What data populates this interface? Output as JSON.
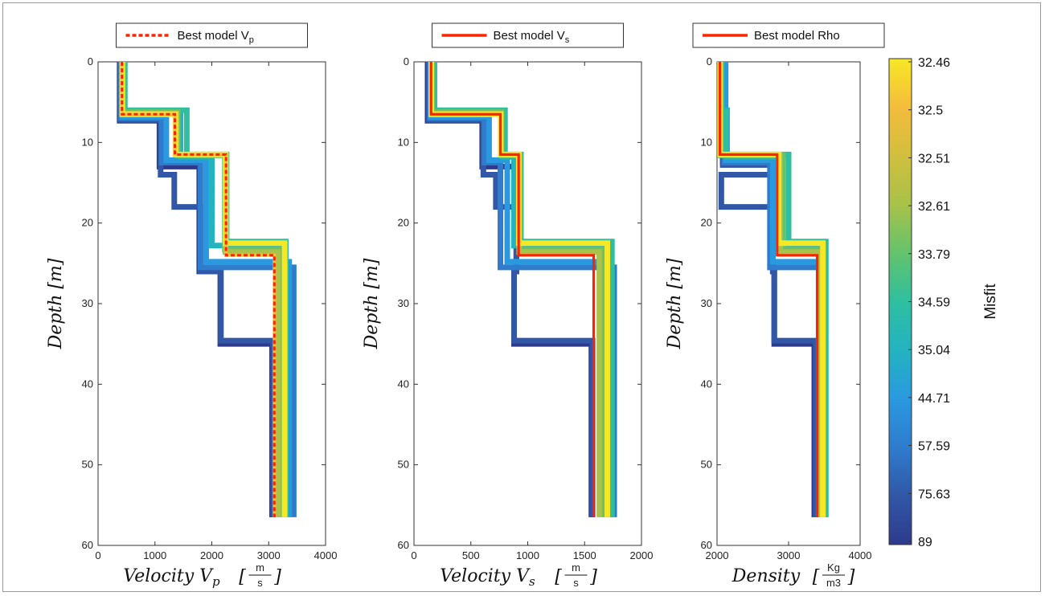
{
  "chart_data": [
    {
      "type": "line",
      "xlabel": "Velocity V_p [m/s]",
      "xlabel_main": "Velocity V",
      "xlabel_sub": "p",
      "xlabel_unit_num": "m",
      "xlabel_unit_den": "s",
      "ylabel": "Depth [m]",
      "ylabel_main": "Depth",
      "ylabel_unit": "m",
      "xlim": [
        0,
        4000
      ],
      "ylim": [
        0,
        60
      ],
      "xticks": [
        0,
        1000,
        2000,
        3000,
        4000
      ],
      "yticks": [
        0,
        10,
        20,
        30,
        40,
        50,
        60
      ],
      "y_reversed": true,
      "legend": {
        "label": "Best model V",
        "sub": "p",
        "position": "top",
        "line_style": "dashed"
      },
      "best_model": {
        "name": "Best model V_p",
        "color": "#ff2200",
        "depth_tops": [
          0,
          6.5,
          11.5,
          24
        ],
        "values": [
          420,
          1350,
          2250,
          3100
        ],
        "bottom": 56.5
      },
      "ensemble": [
        {
          "misfit": 89,
          "depth_tops": [
            0,
            7.3,
            13,
            26,
            30,
            35
          ],
          "values": [
            380,
            1080,
            1780,
            2150,
            2150,
            3060
          ],
          "bottom": 56.5
        },
        {
          "misfit": 75.63,
          "depth_tops": [
            0,
            7.2,
            14,
            18,
            26,
            29.7,
            34.6
          ],
          "values": [
            390,
            1100,
            1340,
            1800,
            2160,
            2160,
            3080
          ],
          "bottom": 56.5
        },
        {
          "misfit": 57.59,
          "depth_tops": [
            0,
            7,
            12.5,
            25.5
          ],
          "values": [
            400,
            1120,
            1800,
            3440
          ],
          "bottom": 56.5
        },
        {
          "misfit": 44.71,
          "depth_tops": [
            0,
            6.8,
            12.2,
            24.8
          ],
          "values": [
            430,
            1200,
            1900,
            3360
          ],
          "bottom": 56.5
        },
        {
          "misfit": 35.04,
          "depth_tops": [
            0,
            6.3,
            11.8,
            22.8
          ],
          "values": [
            460,
            1450,
            2000,
            3260
          ],
          "bottom": 56.5
        },
        {
          "misfit": 34.59,
          "depth_tops": [
            0,
            6,
            11.5,
            22.3
          ],
          "values": [
            470,
            1560,
            2260,
            3300
          ],
          "bottom": 56.5
        },
        {
          "misfit": 33.79,
          "depth_tops": [
            0,
            6.2,
            11.6,
            23.3
          ],
          "values": [
            440,
            1400,
            2230,
            3200
          ],
          "bottom": 56.5
        },
        {
          "misfit": 32.61,
          "depth_tops": [
            0,
            6.4,
            11.5,
            23.6
          ],
          "values": [
            430,
            1380,
            2240,
            3160
          ],
          "bottom": 56.5
        },
        {
          "misfit": 32.46,
          "depth_tops": [
            0,
            6.5,
            11.5,
            22.5
          ],
          "values": [
            425,
            1360,
            2245,
            3280
          ],
          "bottom": 56.5
        }
      ]
    },
    {
      "type": "line",
      "xlabel": "Velocity V_s [m/s]",
      "xlabel_main": "Velocity V",
      "xlabel_sub": "s",
      "xlabel_unit_num": "m",
      "xlabel_unit_den": "s",
      "ylabel": "Depth [m]",
      "ylabel_main": "Depth",
      "ylabel_unit": "m",
      "xlim": [
        0,
        2000
      ],
      "ylim": [
        0,
        60
      ],
      "xticks": [
        0,
        500,
        1000,
        1500,
        2000
      ],
      "yticks": [
        0,
        10,
        20,
        30,
        40,
        50,
        60
      ],
      "y_reversed": true,
      "legend": {
        "label": "Best model V",
        "sub": "s",
        "position": "top",
        "line_style": "solid"
      },
      "best_model": {
        "name": "Best model V_s",
        "color": "#ff2200",
        "depth_tops": [
          0,
          6.5,
          11.5,
          24
        ],
        "values": [
          150,
          760,
          920,
          1580
        ],
        "bottom": 56.5
      },
      "ensemble": [
        {
          "misfit": 89,
          "depth_tops": [
            0,
            7.3,
            13,
            26,
            30,
            35
          ],
          "values": [
            120,
            600,
            900,
            880,
            880,
            1560
          ],
          "bottom": 56.5
        },
        {
          "misfit": 75.63,
          "depth_tops": [
            0,
            7.2,
            14,
            18,
            26,
            29.7,
            34.6
          ],
          "values": [
            130,
            610,
            720,
            900,
            880,
            880,
            1570
          ],
          "bottom": 56.5
        },
        {
          "misfit": 57.59,
          "depth_tops": [
            0,
            7,
            12.5,
            25.5
          ],
          "values": [
            140,
            620,
            760,
            1760
          ],
          "bottom": 56.5
        },
        {
          "misfit": 44.71,
          "depth_tops": [
            0,
            6.8,
            12.2,
            24.8
          ],
          "values": [
            150,
            660,
            820,
            1720
          ],
          "bottom": 56.5
        },
        {
          "misfit": 35.04,
          "depth_tops": [
            0,
            6.3,
            11.8,
            22.8
          ],
          "values": [
            170,
            780,
            880,
            1680
          ],
          "bottom": 56.5
        },
        {
          "misfit": 34.59,
          "depth_tops": [
            0,
            6,
            11.5,
            22.3
          ],
          "values": [
            180,
            800,
            940,
            1740
          ],
          "bottom": 56.5
        },
        {
          "misfit": 33.79,
          "depth_tops": [
            0,
            6.2,
            11.6,
            23.3
          ],
          "values": [
            160,
            770,
            930,
            1650
          ],
          "bottom": 56.5
        },
        {
          "misfit": 32.61,
          "depth_tops": [
            0,
            6.4,
            11.5,
            23.6
          ],
          "values": [
            155,
            765,
            925,
            1630
          ],
          "bottom": 56.5
        },
        {
          "misfit": 32.46,
          "depth_tops": [
            0,
            6.5,
            11.5,
            22.5
          ],
          "values": [
            152,
            762,
            922,
            1700
          ],
          "bottom": 56.5
        }
      ]
    },
    {
      "type": "line",
      "xlabel": "Density [Kg/m3]",
      "xlabel_main": "Density",
      "xlabel_sub": "",
      "xlabel_unit_num": "Kg",
      "xlabel_unit_den": "m3",
      "ylabel": "Depth [m]",
      "ylabel_main": "Depth",
      "ylabel_unit": "m",
      "xlim": [
        2000,
        4000
      ],
      "ylim": [
        0,
        60
      ],
      "xticks": [
        2000,
        3000,
        4000
      ],
      "yticks": [
        0,
        10,
        20,
        30,
        40,
        50,
        60
      ],
      "y_reversed": true,
      "legend": {
        "label": "Best model Rho",
        "sub": "",
        "position": "top",
        "line_style": "solid"
      },
      "best_model": {
        "name": "Best model Rho",
        "color": "#ff2200",
        "depth_tops": [
          0,
          11.5,
          24
        ],
        "values": [
          2040,
          2840,
          3400
        ],
        "bottom": 56.5
      },
      "ensemble": [
        {
          "misfit": 89,
          "depth_tops": [
            0,
            12.5,
            26,
            30,
            35
          ],
          "values": [
            2080,
            2780,
            2800,
            2800,
            3360
          ],
          "bottom": 56.5
        },
        {
          "misfit": 75.63,
          "depth_tops": [
            0,
            12.8,
            14,
            18,
            26,
            29.7,
            34.6
          ],
          "values": [
            2080,
            2780,
            2060,
            2780,
            2800,
            2800,
            3380
          ],
          "bottom": 56.5
        },
        {
          "misfit": 57.59,
          "depth_tops": [
            0,
            12.5,
            25.5
          ],
          "values": [
            2100,
            2740,
            3500
          ],
          "bottom": 56.5
        },
        {
          "misfit": 44.71,
          "depth_tops": [
            0,
            12.2,
            24.8
          ],
          "values": [
            2120,
            2780,
            3460
          ],
          "bottom": 56.5
        },
        {
          "misfit": 35.04,
          "depth_tops": [
            0,
            6,
            11.8,
            22.8
          ],
          "values": [
            2070,
            2140,
            2900,
            3420
          ],
          "bottom": 56.5
        },
        {
          "misfit": 34.59,
          "depth_tops": [
            0,
            6.2,
            11.5,
            22.3
          ],
          "values": [
            2060,
            2120,
            3000,
            3520
          ],
          "bottom": 56.5
        },
        {
          "misfit": 33.79,
          "depth_tops": [
            0,
            11.6,
            23.3
          ],
          "values": [
            2050,
            2920,
            3460
          ],
          "bottom": 56.5
        },
        {
          "misfit": 32.61,
          "depth_tops": [
            0,
            11.5,
            23.6
          ],
          "values": [
            2045,
            2880,
            3440
          ],
          "bottom": 56.5
        },
        {
          "misfit": 32.46,
          "depth_tops": [
            0,
            11.5,
            22.5
          ],
          "values": [
            2042,
            2860,
            3480
          ],
          "bottom": 56.5
        }
      ]
    }
  ],
  "colorbar": {
    "label": "Misfit",
    "ticks": [
      "32.46",
      "32.5",
      "32.51",
      "32.61",
      "33.79",
      "34.59",
      "35.04",
      "44.71",
      "57.59",
      "75.63",
      "89"
    ],
    "colors": [
      "#f7e826",
      "#f4bc3c",
      "#d1bf3e",
      "#a8c24a",
      "#64c36c",
      "#2fbfa0",
      "#24b3c0",
      "#2a99df",
      "#2f7ccd",
      "#3157a6",
      "#2e3a8c"
    ]
  }
}
